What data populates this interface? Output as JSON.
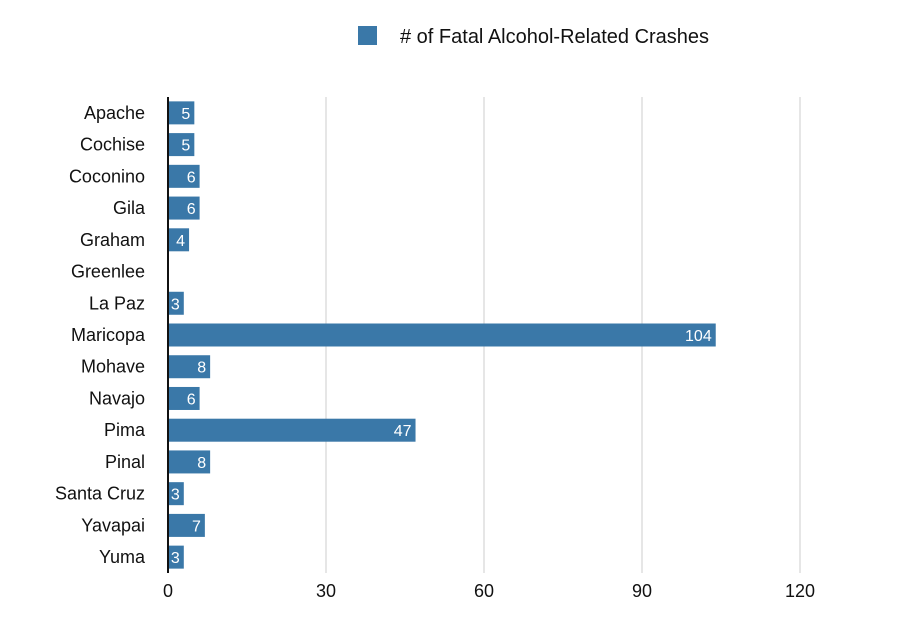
{
  "chart_data": {
    "type": "bar",
    "orientation": "horizontal",
    "categories": [
      "Apache",
      "Cochise",
      "Coconino",
      "Gila",
      "Graham",
      "Greenlee",
      "La Paz",
      "Maricopa",
      "Mohave",
      "Navajo",
      "Pima",
      "Pinal",
      "Santa Cruz",
      "Yavapai",
      "Yuma"
    ],
    "series": [
      {
        "name": "# of Fatal Alcohol-Related Crashes",
        "values": [
          5,
          5,
          6,
          6,
          4,
          0,
          3,
          104,
          8,
          6,
          47,
          8,
          3,
          7,
          3
        ],
        "data_labels": [
          "5",
          "5",
          "6",
          "6",
          "4",
          "",
          "3",
          "104",
          "8",
          "6",
          "47",
          "8",
          "3",
          "7",
          "3"
        ],
        "color": "#3a78a8"
      }
    ],
    "xlim": [
      0,
      120
    ],
    "xticks": [
      0,
      30,
      60,
      90,
      120
    ],
    "xtick_labels": [
      "0",
      "30",
      "60",
      "90",
      "120"
    ],
    "grid": true,
    "legend_position": "top"
  }
}
